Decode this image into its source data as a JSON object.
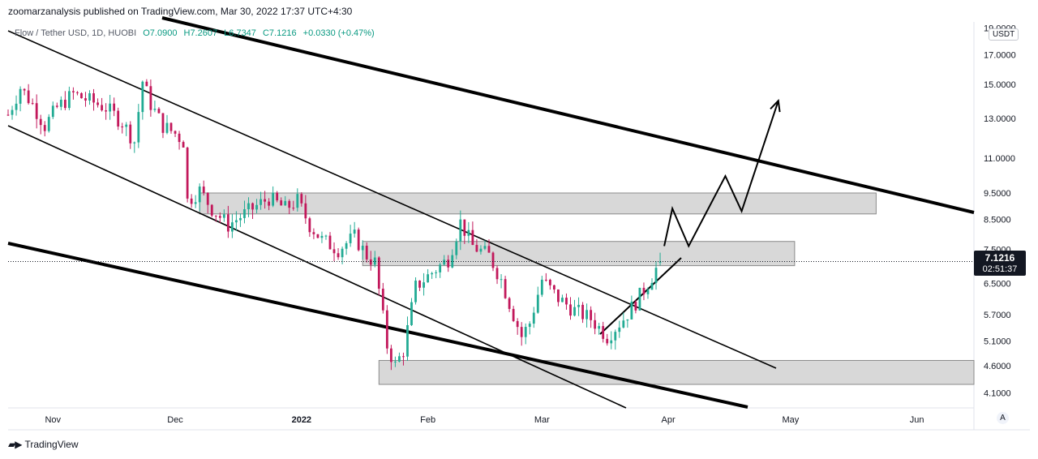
{
  "header": {
    "publish_line": "zoomarzanalysis published on TradingView.com, Mar 30, 2022 17:37 UTC+4:30",
    "symbol": "Flow / Tether USD, 1D, HUOBI",
    "open": "O7.0900",
    "high": "H7.2607",
    "low": "L6.7347",
    "close": "C7.1216",
    "change": "+0.0330 (+0.47%)"
  },
  "price_axis": {
    "currency": "USDT",
    "ticks": [
      "19.0000",
      "17.0000",
      "15.0000",
      "13.0000",
      "11.0000",
      "9.5000",
      "8.5000",
      "7.5000",
      "6.5000",
      "5.7000",
      "5.1000",
      "4.6000",
      "4.1000"
    ],
    "last_price": "7.1216",
    "countdown": "02:51:37"
  },
  "time_axis": {
    "labels": [
      "Nov",
      "Dec",
      "2022",
      "Feb",
      "Mar",
      "Apr",
      "May",
      "Jun"
    ],
    "auto_label": "A"
  },
  "footer": {
    "brand": "TradingView"
  },
  "colors": {
    "up": "#22ab94",
    "down": "#c2185b",
    "zone": "#d1d1d1",
    "line": "#000000"
  },
  "chart_data": {
    "type": "candlestick",
    "title": "Flow / Tether USD, 1D, HUOBI",
    "scale": "log",
    "ylim": [
      3.85,
      19.5
    ],
    "x_start": "2021-10-21",
    "x_end": "2022-06-15",
    "last_price": 7.1216,
    "close_path": [
      [
        "2021-10-21",
        13.2
      ],
      [
        "2021-10-24",
        14.8
      ],
      [
        "2021-10-27",
        13.8
      ],
      [
        "2021-10-30",
        12.6
      ],
      [
        "2021-11-02",
        13.6
      ],
      [
        "2021-11-06",
        14.4
      ],
      [
        "2021-11-10",
        14.0
      ],
      [
        "2021-11-14",
        13.6
      ],
      [
        "2021-11-18",
        12.8
      ],
      [
        "2021-11-21",
        11.8
      ],
      [
        "2021-11-23",
        15.2
      ],
      [
        "2021-11-25",
        13.8
      ],
      [
        "2021-11-28",
        12.6
      ],
      [
        "2021-12-01",
        12.2
      ],
      [
        "2021-12-03",
        11.8
      ],
      [
        "2021-12-04",
        9.2
      ],
      [
        "2021-12-07",
        9.6
      ],
      [
        "2021-12-10",
        8.9
      ],
      [
        "2021-12-14",
        8.3
      ],
      [
        "2021-12-17",
        8.6
      ],
      [
        "2021-12-20",
        8.9
      ],
      [
        "2021-12-24",
        9.3
      ],
      [
        "2021-12-28",
        8.9
      ],
      [
        "2021-12-31",
        9.2
      ],
      [
        "2022-01-03",
        8.3
      ],
      [
        "2022-01-06",
        7.8
      ],
      [
        "2022-01-10",
        7.5
      ],
      [
        "2022-01-14",
        7.9
      ],
      [
        "2022-01-17",
        7.3
      ],
      [
        "2022-01-19",
        7.1
      ],
      [
        "2022-01-22",
        5.0
      ],
      [
        "2022-01-24",
        4.6
      ],
      [
        "2022-01-26",
        4.9
      ],
      [
        "2022-01-29",
        6.4
      ],
      [
        "2022-02-02",
        6.8
      ],
      [
        "2022-02-06",
        7.2
      ],
      [
        "2022-02-09",
        8.4
      ],
      [
        "2022-02-12",
        7.6
      ],
      [
        "2022-02-16",
        7.3
      ],
      [
        "2022-02-19",
        6.6
      ],
      [
        "2022-02-22",
        5.7
      ],
      [
        "2022-02-24",
        5.2
      ],
      [
        "2022-02-26",
        5.5
      ],
      [
        "2022-03-01",
        6.6
      ],
      [
        "2022-03-05",
        6.1
      ],
      [
        "2022-03-09",
        5.8
      ],
      [
        "2022-03-13",
        5.6
      ],
      [
        "2022-03-17",
        5.2
      ],
      [
        "2022-03-21",
        5.6
      ],
      [
        "2022-03-24",
        6.0
      ],
      [
        "2022-03-27",
        6.5
      ],
      [
        "2022-03-30",
        7.1216
      ]
    ],
    "zones": [
      {
        "from": "2021-12-07",
        "to": "2022-05-22",
        "low": 8.7,
        "high": 9.5
      },
      {
        "from": "2022-01-16",
        "to": "2022-05-02",
        "low": 7.0,
        "high": 7.75
      },
      {
        "from": "2022-01-20",
        "to": "2022-06-15",
        "low": 4.25,
        "high": 4.7
      }
    ],
    "projection": [
      [
        "2022-03-31",
        7.6
      ],
      [
        "2022-04-02",
        8.9
      ],
      [
        "2022-04-06",
        7.6
      ],
      [
        "2022-04-15",
        10.2
      ],
      [
        "2022-04-19",
        8.8
      ],
      [
        "2022-04-28",
        14.0
      ]
    ]
  }
}
